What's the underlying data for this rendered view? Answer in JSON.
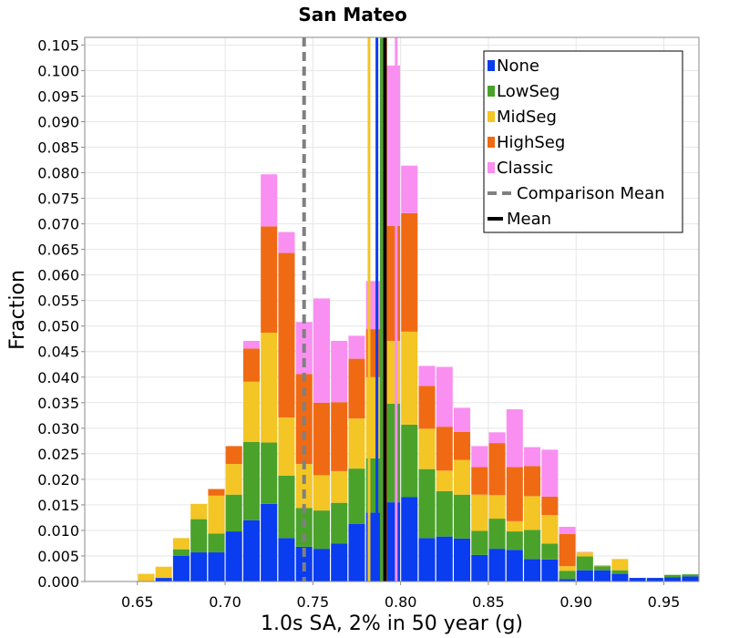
{
  "chart_data": {
    "type": "bar",
    "stacked": true,
    "title": "San Mateo",
    "xlabel": "1.0s SA, 2% in 50 year (g)",
    "ylabel": "Fraction",
    "xlim": [
      0.62,
      0.97
    ],
    "ylim": [
      0,
      0.1065
    ],
    "x_ticks": [
      0.65,
      0.7,
      0.75,
      0.8,
      0.85,
      0.9,
      0.95
    ],
    "x_tick_labels": [
      "0.65",
      "0.70",
      "0.75",
      "0.80",
      "0.85",
      "0.90",
      "0.95"
    ],
    "y_ticks": [
      0,
      0.005,
      0.01,
      0.015,
      0.02,
      0.025,
      0.03,
      0.035,
      0.04,
      0.045,
      0.05,
      0.055,
      0.06,
      0.065,
      0.07,
      0.075,
      0.08,
      0.085,
      0.09,
      0.095,
      0.1,
      0.105
    ],
    "y_tick_labels": [
      "0.000",
      "0.005",
      "0.010",
      "0.015",
      "0.020",
      "0.025",
      "0.030",
      "0.035",
      "0.040",
      "0.045",
      "0.050",
      "0.055",
      "0.060",
      "0.065",
      "0.070",
      "0.075",
      "0.080",
      "0.085",
      "0.090",
      "0.095",
      "0.100",
      "0.105"
    ],
    "grid": true,
    "legend_position": "top-right",
    "bin_width": 0.01,
    "bin_starts": [
      0.62,
      0.63,
      0.64,
      0.65,
      0.66,
      0.67,
      0.68,
      0.69,
      0.7,
      0.71,
      0.72,
      0.73,
      0.74,
      0.75,
      0.76,
      0.77,
      0.78,
      0.79,
      0.8,
      0.81,
      0.82,
      0.83,
      0.84,
      0.85,
      0.86,
      0.87,
      0.88,
      0.89,
      0.9,
      0.91,
      0.92,
      0.93,
      0.94,
      0.95,
      0.96
    ],
    "series": [
      {
        "name": "None",
        "color": "#0a3cf0",
        "values": [
          0,
          0,
          0,
          0,
          0.0007,
          0.005,
          0.0057,
          0.0057,
          0.0098,
          0.012,
          0.0152,
          0.0085,
          0.0068,
          0.0064,
          0.0074,
          0.0113,
          0.0135,
          0.0155,
          0.0165,
          0.0085,
          0.0088,
          0.0084,
          0.0052,
          0.0064,
          0.0062,
          0.0044,
          0.0043,
          0.0005,
          0.0022,
          0.0022,
          0.0015,
          0.0007,
          0.0007,
          0.0008,
          0.001
        ]
      },
      {
        "name": "LowSeg",
        "color": "#4aa22a",
        "values": [
          0,
          0,
          0,
          0,
          0,
          0.0013,
          0.0065,
          0.0037,
          0.0072,
          0.0153,
          0.012,
          0.0122,
          0.0076,
          0.0075,
          0.008,
          0.0108,
          0.0106,
          0.0193,
          0.0142,
          0.0135,
          0.0089,
          0.0086,
          0.0047,
          0.0059,
          0.0036,
          0.0057,
          0.0031,
          0.0016,
          0.0027,
          0.0008,
          0.0007,
          0,
          0,
          0.0005,
          0.0004
        ]
      },
      {
        "name": "MidSeg",
        "color": "#f3c525",
        "values": [
          0,
          0,
          0,
          0.0015,
          0.0022,
          0.0022,
          0.003,
          0.0074,
          0.006,
          0.0118,
          0.0215,
          0.0114,
          0.0086,
          0.0069,
          0.0062,
          0.0098,
          0.0159,
          0.0123,
          0.0182,
          0.0079,
          0.004,
          0.0068,
          0.0071,
          0.0046,
          0.002,
          0.0066,
          0.0056,
          0.0009,
          0.0008,
          0.0002,
          0.0022,
          0,
          0,
          0,
          0
        ]
      },
      {
        "name": "HighSeg",
        "color": "#f06a14",
        "values": [
          0,
          0,
          0,
          0,
          0,
          0,
          0,
          0.0013,
          0.0035,
          0.0065,
          0.0208,
          0.0322,
          0.0176,
          0.0142,
          0.0135,
          0.0117,
          0.0094,
          0.0225,
          0.0232,
          0.0084,
          0.0086,
          0.0055,
          0.0054,
          0.0102,
          0.0106,
          0.0059,
          0.0036,
          0.0063,
          0,
          0,
          0,
          0,
          0,
          0,
          0
        ]
      },
      {
        "name": "Classic",
        "color": "#f98ff0",
        "values": [
          0,
          0,
          0,
          0,
          0,
          0,
          0,
          0,
          0,
          0.0015,
          0.0102,
          0.0041,
          0.0102,
          0.0204,
          0.012,
          0.0045,
          0.0094,
          0.0314,
          0.0093,
          0.0039,
          0.0117,
          0.0047,
          0.0041,
          0.0021,
          0.0113,
          0.0037,
          0.0092,
          0.0014,
          0.0001,
          0,
          0,
          0,
          0,
          0,
          0
        ]
      }
    ],
    "vertical_lines": [
      {
        "name": "Comparison Mean",
        "x": 0.745,
        "color": "#808080",
        "style": "dashed",
        "in_legend": true
      },
      {
        "name": "Mean",
        "x": 0.791,
        "color": "#000000",
        "style": "solid",
        "in_legend": true
      },
      {
        "name": "",
        "x": 0.782,
        "color": "#f3c525",
        "style": "solid",
        "in_legend": false
      },
      {
        "name": "",
        "x": 0.7865,
        "color": "#0a3cf0",
        "style": "solid",
        "in_legend": false
      },
      {
        "name": "",
        "x": 0.789,
        "color": "#4aa22a",
        "style": "solid",
        "in_legend": false
      },
      {
        "name": "",
        "x": 0.7915,
        "color": "#f06a14",
        "style": "solid",
        "in_legend": false
      },
      {
        "name": "",
        "x": 0.7975,
        "color": "#f98ff0",
        "style": "solid",
        "in_legend": false
      }
    ]
  }
}
